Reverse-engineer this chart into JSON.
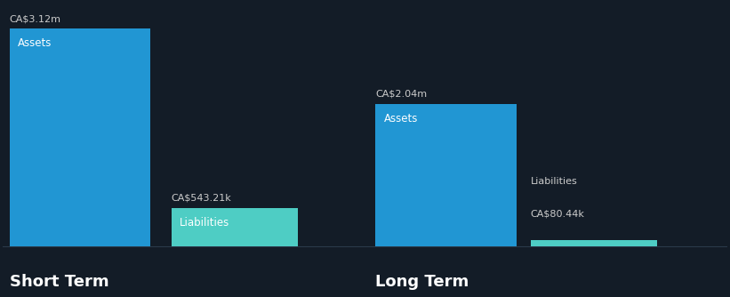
{
  "background_color": "#131c27",
  "short_term": {
    "assets_value": 3120000,
    "liabilities_value": 543210,
    "assets_label": "CA$3.12m",
    "liabilities_label": "CA$543.21k",
    "assets_color": "#2196d3",
    "liabilities_color": "#4ecdc4",
    "section_label": "Short Term"
  },
  "long_term": {
    "assets_value": 2040000,
    "liabilities_value": 80440,
    "assets_label": "CA$2.04m",
    "liabilities_label": "CA$80.44k",
    "assets_color": "#2196d3",
    "liabilities_color": "#4ecdc4",
    "section_label": "Long Term"
  },
  "bar_label_color": "#ffffff",
  "value_label_color": "#cccccc",
  "section_label_color": "#ffffff",
  "bar_inner_label_fontsize": 8.5,
  "value_label_fontsize": 8,
  "section_label_fontsize": 13,
  "max_value": 3120000,
  "baseline_color": "#2a3a4a"
}
